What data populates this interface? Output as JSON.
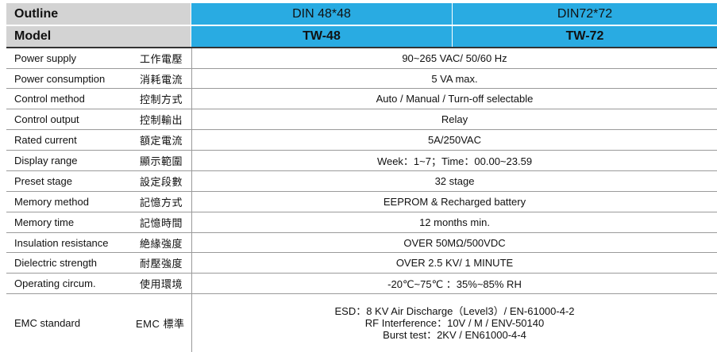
{
  "header": {
    "outline_label": "Outline",
    "model_label": "Model",
    "outline_col1": "DIN 48*48",
    "outline_col2": "DIN72*72",
    "model_col1": "TW-48",
    "model_col2": "TW-72"
  },
  "rows": [
    {
      "en": "Power supply",
      "zh": "工作電壓",
      "value": "90~265 VAC/ 50/60 Hz"
    },
    {
      "en": "Power consumption",
      "zh": "消耗電流",
      "value": "5 VA max."
    },
    {
      "en": "Control method",
      "zh": "控制方式",
      "value": "Auto / Manual / Turn-off selectable"
    },
    {
      "en": "Control output",
      "zh": "控制輸出",
      "value": "Relay"
    },
    {
      "en": "Rated current",
      "zh": "額定電流",
      "value": "5A/250VAC"
    },
    {
      "en": "Display range",
      "zh": "顯示範圍",
      "value": "Week：1~7；Time：00.00~23.59"
    },
    {
      "en": "Preset stage",
      "zh": "設定段數",
      "value": "32 stage"
    },
    {
      "en": "Memory method",
      "zh": "記憶方式",
      "value": "EEPROM & Recharged battery"
    },
    {
      "en": "Memory time",
      "zh": "記憶時間",
      "value": "12 months min."
    },
    {
      "en": "Insulation resistance",
      "zh": "絶緣強度",
      "value": "OVER 50MΩ/500VDC"
    },
    {
      "en": "Dielectric strength",
      "zh": "耐壓強度",
      "value": "OVER 2.5 KV/ 1 MINUTE"
    },
    {
      "en": "Operating circum.",
      "zh": "使用環境",
      "value": "-20℃~75℃ ：35%~85% RH"
    }
  ],
  "emc": {
    "en": "EMC standard",
    "zh": "EMC 標準",
    "lines": [
      "ESD：8 KV Air Discharge（Level3）/ EN-61000-4-2",
      "RF Interference：10V / M / ENV-50140",
      "Burst test：2KV / EN61000-4-4"
    ]
  },
  "colors": {
    "header_blue": "#29abe2",
    "header_gray": "#d3d3d3",
    "row_divider": "#9a9a9a"
  }
}
